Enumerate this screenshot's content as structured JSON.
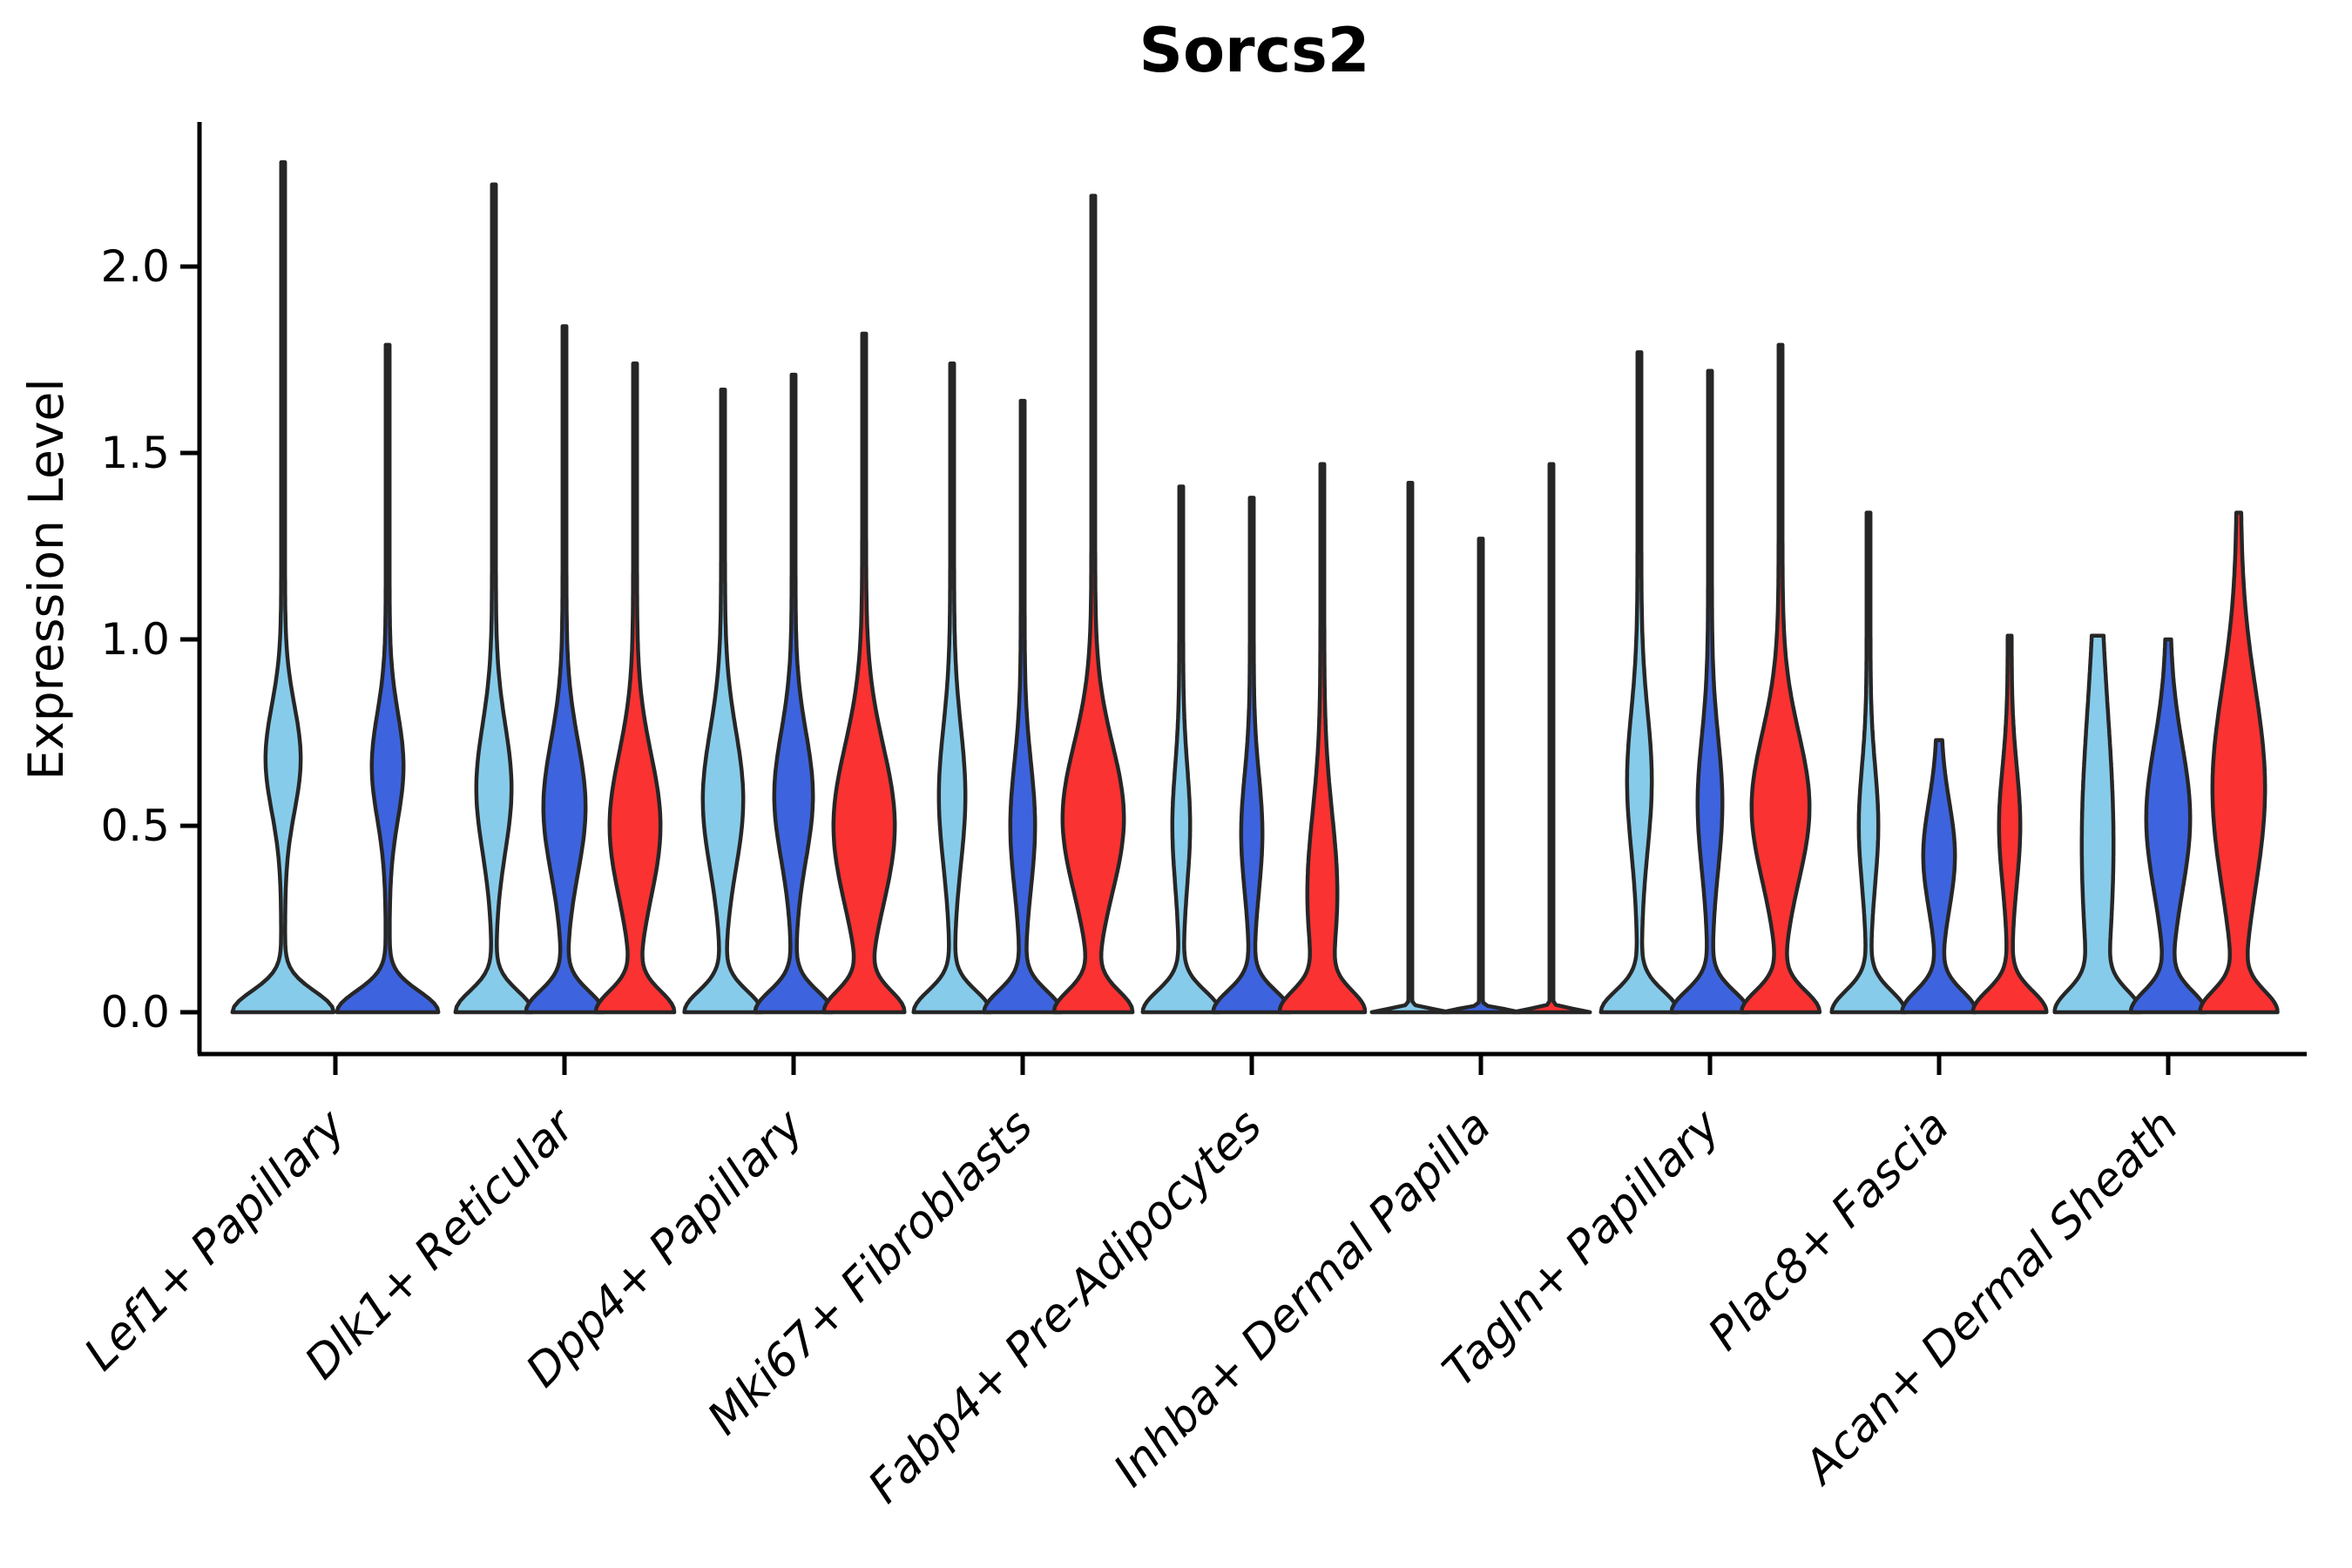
{
  "title": "Sorcs2",
  "axes": {
    "ylabel": "Expression Level",
    "ytick_labels": [
      "0.0",
      "0.5",
      "1.0",
      "1.5",
      "2.0"
    ]
  },
  "chart_data": {
    "type": "violin",
    "title": "Sorcs2",
    "xlabel": "",
    "ylabel": "Expression Level",
    "ylim": [
      0,
      2.38
    ],
    "yticks": [
      0,
      0.5,
      1.0,
      1.5,
      2.0
    ],
    "grid": false,
    "legend": "none",
    "note": "Split violin plot of Sorcs2 expression per fibroblast cluster; three unlabeled split conditions colored light blue, dark blue and red; all distributions are zero-inflated with a dense mass at 0, a secondary mode near 0.3-0.7 and a thin tail up to the listed maximum.",
    "splits": [
      {
        "id": "condition-1",
        "color": "#87CBEA"
      },
      {
        "id": "condition-2",
        "color": "#3D64DE"
      },
      {
        "id": "condition-3",
        "color": "#FA3232"
      }
    ],
    "outline_color": "#262626",
    "categories": [
      "Lef1+ Papillary",
      "Dlk1+ Reticular",
      "Dpp4+ Papillary",
      "Mki67+ Fibroblasts",
      "Fabp4+ Pre-Adipocytes",
      "Inhba+ Dermal Papilla",
      "Tagln+ Papillary",
      "Plac8+ Fascia",
      "Acan+ Dermal Sheath"
    ],
    "groups": [
      {
        "category": "Lef1+ Papillary",
        "violins": [
          {
            "split": 0,
            "offset": -60,
            "max": 2.28,
            "base_w": 56,
            "bulge_w": 18,
            "bulge_v": 0.68,
            "bulge_s": 0.2
          },
          {
            "split": 1,
            "offset": 60,
            "max": 1.79,
            "base_w": 56,
            "bulge_w": 16,
            "bulge_v": 0.66,
            "bulge_s": 0.2
          }
        ]
      },
      {
        "category": "Dlk1+ Reticular",
        "violins": [
          {
            "split": 0,
            "offset": -81,
            "max": 2.22,
            "base_w": 42,
            "bulge_w": 18,
            "bulge_v": 0.6,
            "bulge_s": 0.24
          },
          {
            "split": 1,
            "offset": 0,
            "max": 1.84,
            "base_w": 42,
            "bulge_w": 22,
            "bulge_v": 0.55,
            "bulge_s": 0.25
          },
          {
            "split": 2,
            "offset": 81,
            "max": 1.74,
            "base_w": 42,
            "bulge_w": 27,
            "bulge_v": 0.5,
            "bulge_s": 0.27
          }
        ]
      },
      {
        "category": "Dpp4+ Papillary",
        "violins": [
          {
            "split": 0,
            "offset": -81,
            "max": 1.67,
            "base_w": 42,
            "bulge_w": 21,
            "bulge_v": 0.57,
            "bulge_s": 0.26
          },
          {
            "split": 1,
            "offset": 0,
            "max": 1.71,
            "base_w": 42,
            "bulge_w": 20,
            "bulge_v": 0.58,
            "bulge_s": 0.24
          },
          {
            "split": 2,
            "offset": 81,
            "max": 1.82,
            "base_w": 42,
            "bulge_w": 33,
            "bulge_v": 0.5,
            "bulge_s": 0.3
          }
        ]
      },
      {
        "category": "Mki67+ Fibroblasts",
        "violins": [
          {
            "split": 0,
            "offset": -81,
            "max": 1.74,
            "base_w": 42,
            "bulge_w": 13,
            "bulge_v": 0.58,
            "bulge_s": 0.26
          },
          {
            "split": 1,
            "offset": 0,
            "max": 1.64,
            "base_w": 42,
            "bulge_w": 12,
            "bulge_v": 0.5,
            "bulge_s": 0.24
          },
          {
            "split": 2,
            "offset": 81,
            "max": 2.19,
            "base_w": 42,
            "bulge_w": 33,
            "bulge_v": 0.52,
            "bulge_s": 0.28
          }
        ]
      },
      {
        "category": "Fabp4+ Pre-Adipocytes",
        "violins": [
          {
            "split": 0,
            "offset": -81,
            "max": 1.41,
            "base_w": 42,
            "bulge_w": 8,
            "bulge_v": 0.5,
            "bulge_s": 0.22
          },
          {
            "split": 1,
            "offset": 0,
            "max": 1.38,
            "base_w": 42,
            "bulge_w": 10,
            "bulge_v": 0.48,
            "bulge_s": 0.22
          },
          {
            "split": 2,
            "offset": 81,
            "max": 1.47,
            "base_w": 42,
            "bulge_w": 15,
            "bulge_v": 0.32,
            "bulge_s": 0.3
          }
        ]
      },
      {
        "category": "Inhba+ Dermal Papilla",
        "violins": [
          {
            "split": 0,
            "offset": -81,
            "max": 1.42,
            "base_w": 42,
            "bulge_w": 0,
            "bulge_v": 0,
            "bulge_s": 1,
            "base_s": 0.012
          },
          {
            "split": 1,
            "offset": 0,
            "max": 1.27,
            "base_w": 42,
            "bulge_w": 0,
            "bulge_v": 0,
            "bulge_s": 1,
            "base_s": 0.012
          },
          {
            "split": 2,
            "offset": 81,
            "max": 1.47,
            "base_w": 42,
            "bulge_w": 0,
            "bulge_v": 0,
            "bulge_s": 1,
            "base_s": 0.012
          }
        ]
      },
      {
        "category": "Tagln+ Papillary",
        "violins": [
          {
            "split": 0,
            "offset": -81,
            "max": 1.77,
            "base_w": 42,
            "bulge_w": 12,
            "bulge_v": 0.62,
            "bulge_s": 0.26
          },
          {
            "split": 1,
            "offset": 0,
            "max": 1.72,
            "base_w": 42,
            "bulge_w": 12,
            "bulge_v": 0.56,
            "bulge_s": 0.25
          },
          {
            "split": 2,
            "offset": 81,
            "max": 1.79,
            "base_w": 42,
            "bulge_w": 31,
            "bulge_v": 0.55,
            "bulge_s": 0.28
          }
        ]
      },
      {
        "category": "Plac8+ Fascia",
        "violins": [
          {
            "split": 0,
            "offset": -81,
            "max": 1.34,
            "base_w": 40,
            "bulge_w": 9,
            "bulge_v": 0.5,
            "bulge_s": 0.22
          },
          {
            "split": 1,
            "offset": 0,
            "max": 0.73,
            "base_w": 40,
            "bulge_w": 16,
            "bulge_v": 0.42,
            "bulge_s": 0.2
          },
          {
            "split": 2,
            "offset": 81,
            "max": 1.01,
            "base_w": 40,
            "bulge_w": 10,
            "bulge_v": 0.5,
            "bulge_s": 0.22
          }
        ]
      },
      {
        "category": "Acan+ Dermal Sheath",
        "violins": [
          {
            "split": 0,
            "offset": -81,
            "max": 1.01,
            "base_w": 40,
            "bulge_w": 16,
            "bulge_v": 0.45,
            "bulge_s": 0.5
          },
          {
            "split": 1,
            "offset": 0,
            "max": 1.0,
            "base_w": 40,
            "bulge_w": 23,
            "bulge_v": 0.52,
            "bulge_s": 0.28
          },
          {
            "split": 2,
            "offset": 81,
            "max": 1.34,
            "base_w": 40,
            "bulge_w": 28,
            "bulge_v": 0.6,
            "bulge_s": 0.38
          }
        ]
      }
    ]
  }
}
